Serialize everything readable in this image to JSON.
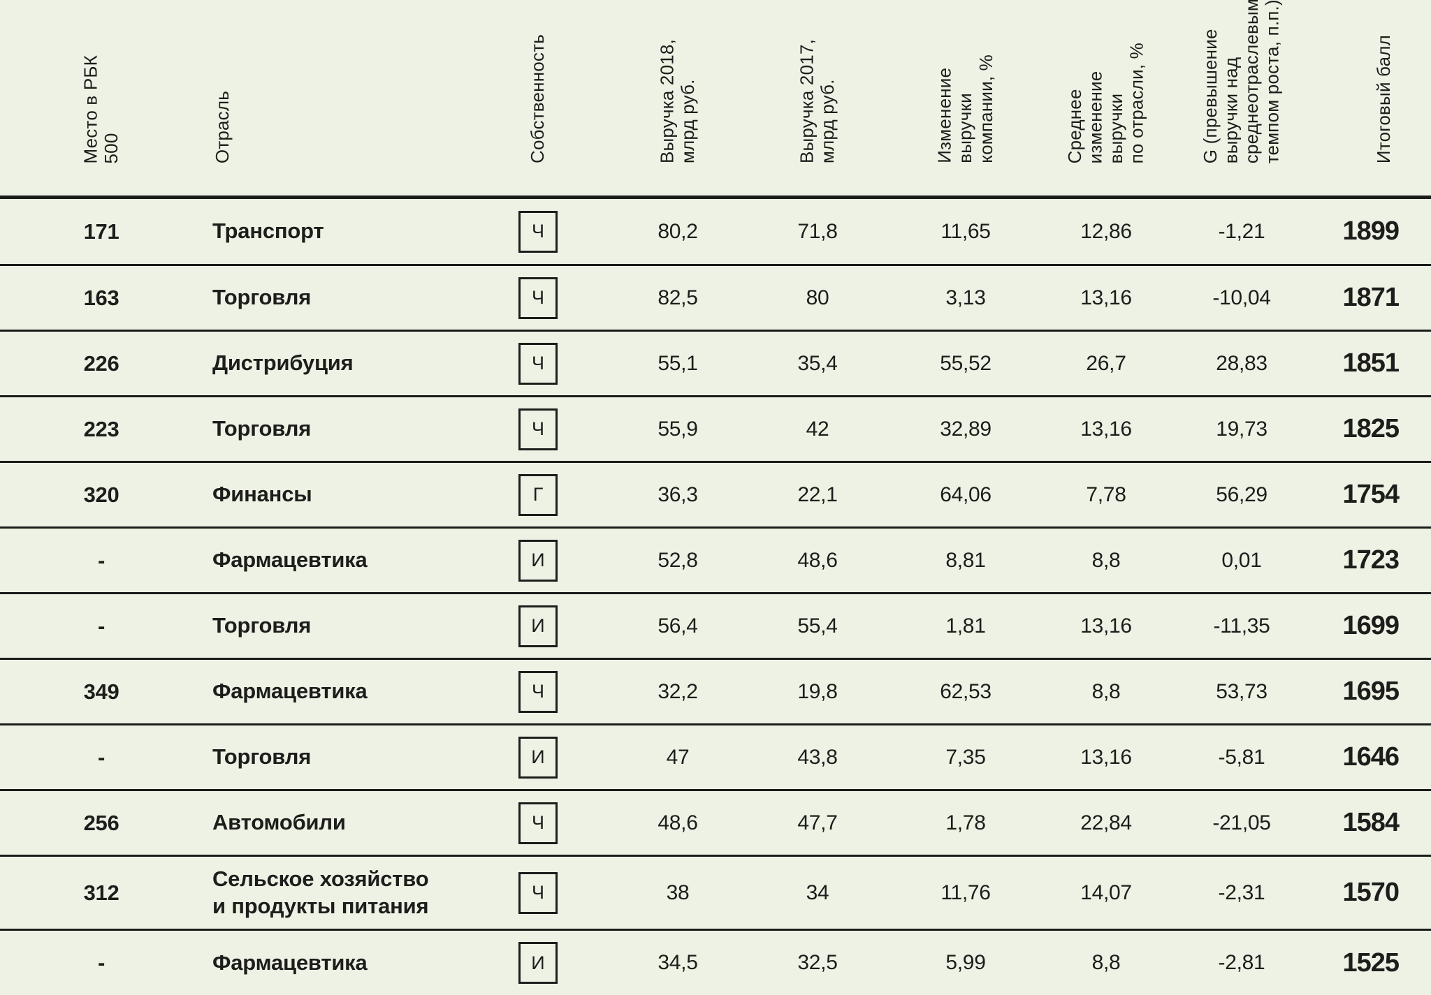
{
  "colors": {
    "background": "#edf2e5",
    "line": "#1b1b19",
    "text": "#1d1d1b"
  },
  "chart_data": {
    "type": "table",
    "columns": [
      {
        "key": "rank",
        "label": "Место в РБК\n500"
      },
      {
        "key": "industry",
        "label": "Отрасль"
      },
      {
        "key": "ownership",
        "label": "Собственность"
      },
      {
        "key": "rev2018",
        "label": "Выручка 2018,\nмлрд руб."
      },
      {
        "key": "rev2017",
        "label": "Выручка 2017,\nмлрд руб."
      },
      {
        "key": "change",
        "label": "Изменение\nвыручки\nкомпании, %"
      },
      {
        "key": "avg_change",
        "label": "Среднее\nизменение\nвыручки\nпо отрасли, %"
      },
      {
        "key": "g",
        "label": "G (превышение\nвыручки над\nсреднеотраслевым\nтемпом роста, п.п.)"
      },
      {
        "key": "score",
        "label": "Итоговый балл"
      }
    ],
    "ownership_codes_visible": [
      "Ч",
      "Г",
      "И"
    ],
    "rows": [
      {
        "rank": "171",
        "industry": "Транспорт",
        "ownership": "Ч",
        "rev2018": "80,2",
        "rev2017": "71,8",
        "change": "11,65",
        "avg_change": "12,86",
        "g": "-1,21",
        "score": "1899"
      },
      {
        "rank": "163",
        "industry": "Торговля",
        "ownership": "Ч",
        "rev2018": "82,5",
        "rev2017": "80",
        "change": "3,13",
        "avg_change": "13,16",
        "g": "-10,04",
        "score": "1871"
      },
      {
        "rank": "226",
        "industry": "Дистрибуция",
        "ownership": "Ч",
        "rev2018": "55,1",
        "rev2017": "35,4",
        "change": "55,52",
        "avg_change": "26,7",
        "g": "28,83",
        "score": "1851"
      },
      {
        "rank": "223",
        "industry": "Торговля",
        "ownership": "Ч",
        "rev2018": "55,9",
        "rev2017": "42",
        "change": "32,89",
        "avg_change": "13,16",
        "g": "19,73",
        "score": "1825"
      },
      {
        "rank": "320",
        "industry": "Финансы",
        "ownership": "Г",
        "rev2018": "36,3",
        "rev2017": "22,1",
        "change": "64,06",
        "avg_change": "7,78",
        "g": "56,29",
        "score": "1754"
      },
      {
        "rank": "-",
        "industry": "Фармацевтика",
        "ownership": "И",
        "rev2018": "52,8",
        "rev2017": "48,6",
        "change": "8,81",
        "avg_change": "8,8",
        "g": "0,01",
        "score": "1723"
      },
      {
        "rank": "-",
        "industry": "Торговля",
        "ownership": "И",
        "rev2018": "56,4",
        "rev2017": "55,4",
        "change": "1,81",
        "avg_change": "13,16",
        "g": "-11,35",
        "score": "1699"
      },
      {
        "rank": "349",
        "industry": "Фармацевтика",
        "ownership": "Ч",
        "rev2018": "32,2",
        "rev2017": "19,8",
        "change": "62,53",
        "avg_change": "8,8",
        "g": "53,73",
        "score": "1695"
      },
      {
        "rank": "-",
        "industry": "Торговля",
        "ownership": "И",
        "rev2018": "47",
        "rev2017": "43,8",
        "change": "7,35",
        "avg_change": "13,16",
        "g": "-5,81",
        "score": "1646"
      },
      {
        "rank": "256",
        "industry": "Автомобили",
        "ownership": "Ч",
        "rev2018": "48,6",
        "rev2017": "47,7",
        "change": "1,78",
        "avg_change": "22,84",
        "g": "-21,05",
        "score": "1584"
      },
      {
        "rank": "312",
        "industry": "Сельское хозяйство\nи продукты питания",
        "ownership": "Ч",
        "rev2018": "38",
        "rev2017": "34",
        "change": "11,76",
        "avg_change": "14,07",
        "g": "-2,31",
        "score": "1570"
      },
      {
        "rank": "-",
        "industry": "Фармацевтика",
        "ownership": "И",
        "rev2018": "34,5",
        "rev2017": "32,5",
        "change": "5,99",
        "avg_change": "8,8",
        "g": "-2,81",
        "score": "1525"
      }
    ]
  }
}
